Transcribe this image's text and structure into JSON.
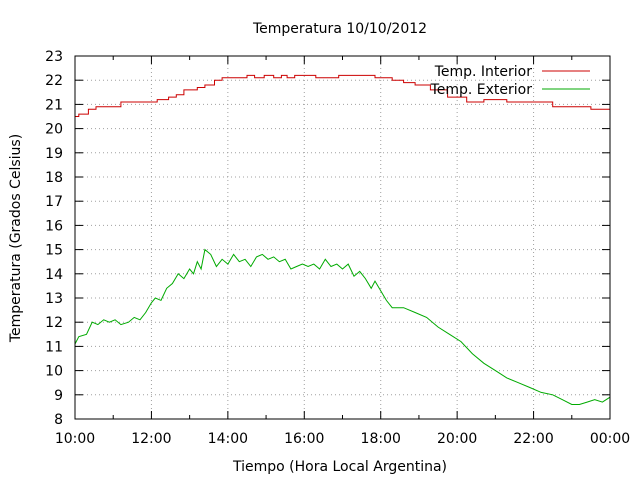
{
  "chart_data": {
    "type": "line",
    "title": "Temperatura 10/10/2012",
    "xlabel": "Tiempo (Hora Local Argentina)",
    "ylabel": "Temperatura (Grados Celsius)",
    "x_unit": "hours",
    "xlim": [
      10,
      24
    ],
    "ylim": [
      8,
      23
    ],
    "x_ticks": [
      10,
      12,
      14,
      16,
      18,
      20,
      22,
      24
    ],
    "x_tick_labels": [
      "10:00",
      "12:00",
      "14:00",
      "16:00",
      "18:00",
      "20:00",
      "22:00",
      "00:00"
    ],
    "y_ticks": [
      8,
      9,
      10,
      11,
      12,
      13,
      14,
      15,
      16,
      17,
      18,
      19,
      20,
      21,
      22,
      23
    ],
    "y_tick_labels": [
      "8",
      "9",
      "10",
      "11",
      "12",
      "13",
      "14",
      "15",
      "16",
      "17",
      "18",
      "19",
      "20",
      "21",
      "22",
      "23"
    ],
    "grid": true,
    "legend_position": "top-right",
    "series": [
      {
        "name": "Temp. Interior",
        "color": "#cc0000",
        "step": true,
        "x": [
          10.0,
          10.1,
          10.35,
          10.55,
          11.2,
          11.8,
          12.15,
          12.45,
          12.65,
          12.85,
          13.2,
          13.4,
          13.65,
          13.85,
          14.3,
          14.5,
          14.7,
          14.95,
          15.2,
          15.4,
          15.55,
          15.75,
          16.3,
          16.9,
          17.4,
          17.85,
          18.3,
          18.6,
          18.9,
          19.3,
          19.75,
          20.25,
          20.7,
          21.3,
          21.95,
          22.5,
          23.0,
          23.5,
          24.0
        ],
        "values": [
          20.5,
          20.6,
          20.8,
          20.9,
          21.1,
          21.1,
          21.2,
          21.3,
          21.4,
          21.6,
          21.7,
          21.8,
          22.0,
          22.1,
          22.1,
          22.2,
          22.1,
          22.2,
          22.1,
          22.2,
          22.1,
          22.2,
          22.1,
          22.2,
          22.2,
          22.1,
          22.0,
          21.9,
          21.8,
          21.6,
          21.3,
          21.1,
          21.2,
          21.1,
          21.1,
          20.9,
          20.9,
          20.8,
          20.8
        ]
      },
      {
        "name": "Temp. Exterior",
        "color": "#00aa00",
        "step": false,
        "x": [
          10.0,
          10.1,
          10.3,
          10.45,
          10.6,
          10.75,
          10.9,
          11.05,
          11.2,
          11.4,
          11.55,
          11.7,
          11.85,
          12.0,
          12.1,
          12.25,
          12.4,
          12.55,
          12.7,
          12.85,
          13.0,
          13.1,
          13.2,
          13.3,
          13.4,
          13.55,
          13.7,
          13.85,
          14.0,
          14.15,
          14.3,
          14.45,
          14.6,
          14.75,
          14.9,
          15.05,
          15.2,
          15.35,
          15.5,
          15.65,
          15.8,
          15.95,
          16.1,
          16.25,
          16.4,
          16.55,
          16.7,
          16.85,
          17.0,
          17.15,
          17.3,
          17.45,
          17.6,
          17.75,
          17.85,
          18.0,
          18.15,
          18.3,
          18.6,
          18.9,
          19.2,
          19.5,
          19.8,
          20.1,
          20.4,
          20.7,
          21.0,
          21.3,
          21.6,
          21.9,
          22.2,
          22.5,
          22.75,
          23.0,
          23.2,
          23.4,
          23.6,
          23.8,
          24.0
        ],
        "values": [
          11.1,
          11.4,
          11.5,
          12.0,
          11.9,
          12.1,
          12.0,
          12.1,
          11.9,
          12.0,
          12.2,
          12.1,
          12.4,
          12.8,
          13.0,
          12.9,
          13.4,
          13.6,
          14.0,
          13.8,
          14.2,
          14.0,
          14.5,
          14.2,
          15.0,
          14.8,
          14.3,
          14.6,
          14.4,
          14.8,
          14.5,
          14.6,
          14.3,
          14.7,
          14.8,
          14.6,
          14.7,
          14.5,
          14.6,
          14.2,
          14.3,
          14.4,
          14.3,
          14.4,
          14.2,
          14.6,
          14.3,
          14.4,
          14.2,
          14.4,
          13.9,
          14.1,
          13.8,
          13.4,
          13.7,
          13.3,
          12.9,
          12.6,
          12.6,
          12.4,
          12.2,
          11.8,
          11.5,
          11.2,
          10.7,
          10.3,
          10.0,
          9.7,
          9.5,
          9.3,
          9.1,
          9.0,
          8.8,
          8.6,
          8.6,
          8.7,
          8.8,
          8.7,
          8.9
        ]
      }
    ]
  }
}
